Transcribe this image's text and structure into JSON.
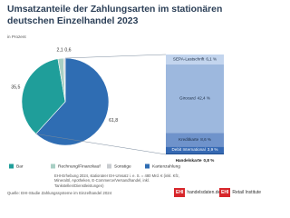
{
  "chart_data": {
    "type": "pie",
    "title": "Umsatzanteile der Zahlungsarten im stationären deutschen Einzelhandel 2023",
    "subtitle": "in Prozent",
    "categories": [
      "Kartenzahlung",
      "Bar",
      "Rechnung/Finanzkauf",
      "Sonstige"
    ],
    "values": [
      61.8,
      35.5,
      2.1,
      0.6
    ],
    "value_labels": [
      "61,8",
      "35,5",
      "2,1",
      "0,6"
    ],
    "colors": [
      "#2f6db3",
      "#1f9e9a",
      "#a8cfc4",
      "#c9ccd0"
    ],
    "breakdown": {
      "categories": [
        "SEPA-Lastschrift",
        "Girocard",
        "Kreditkarte",
        "Debit International",
        "Handelskarte"
      ],
      "values": [
        6.1,
        42.4,
        8.6,
        3.9,
        0.8
      ],
      "value_labels": [
        "6,1 %",
        "42,4 %",
        "8,6 %",
        "3,9 %",
        "0,8 %"
      ],
      "colors": [
        "#c3d5ee",
        "#9db8de",
        "#6f93cb",
        "#3569b4",
        "#1f4f96"
      ]
    },
    "notes": "EHI-Erhebung 2024, stationärer EH-Umsatz i. e. S. = 480 Mrd. € (inkl. Kfz, Mineralöl, Apotheken, E-Commerce/Versandhandel, inkl. Tankstellen/Dienstleistungen)",
    "source": "Quelle: EHI-Studie Zahlungssysteme im Einzelhandel 2024",
    "logos": [
      {
        "mark": "EHI",
        "text": "handelsdaten.de"
      },
      {
        "mark": "EHI",
        "text": "Retail Institute"
      }
    ]
  }
}
